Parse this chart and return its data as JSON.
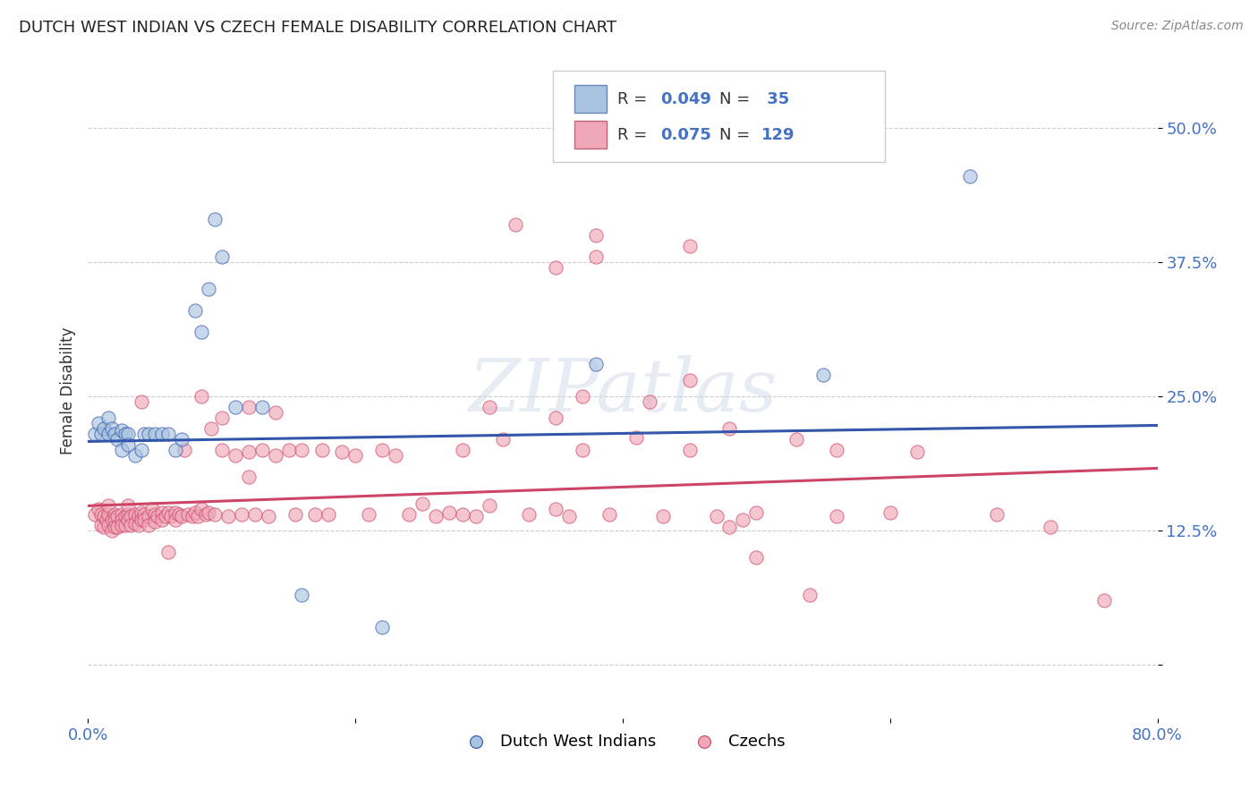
{
  "title": "DUTCH WEST INDIAN VS CZECH FEMALE DISABILITY CORRELATION CHART",
  "source": "Source: ZipAtlas.com",
  "ylabel": "Female Disability",
  "yticks": [
    0.0,
    0.125,
    0.25,
    0.375,
    0.5
  ],
  "ytick_labels": [
    "",
    "12.5%",
    "25.0%",
    "37.5%",
    "50.0%"
  ],
  "xlim": [
    0.0,
    0.8
  ],
  "ylim": [
    -0.05,
    0.56
  ],
  "color_blue": "#a8c4e0",
  "color_pink": "#f0a8b8",
  "color_blue_line": "#3355aa",
  "color_pink_line": "#cc4466",
  "color_blue_text": "#4472c4",
  "background_color": "#ffffff",
  "grid_color": "#cccccc",
  "watermark": "ZIPatlas",
  "legend_label_blue": "Dutch West Indians",
  "legend_label_pink": "Czechs",
  "blue_line_y_start": 0.208,
  "blue_line_y_end": 0.223,
  "pink_line_y_start": 0.148,
  "pink_line_y_end": 0.183,
  "blue_scatter_x": [
    0.005,
    0.008,
    0.01,
    0.012,
    0.015,
    0.015,
    0.018,
    0.02,
    0.022,
    0.025,
    0.025,
    0.028,
    0.03,
    0.03,
    0.035,
    0.04,
    0.042,
    0.045,
    0.05,
    0.055,
    0.06,
    0.065,
    0.07,
    0.08,
    0.085,
    0.09,
    0.095,
    0.1,
    0.11,
    0.13,
    0.16,
    0.22,
    0.38,
    0.55,
    0.66
  ],
  "blue_scatter_y": [
    0.215,
    0.225,
    0.215,
    0.22,
    0.23,
    0.215,
    0.22,
    0.215,
    0.21,
    0.218,
    0.2,
    0.215,
    0.215,
    0.205,
    0.195,
    0.2,
    0.215,
    0.215,
    0.215,
    0.215,
    0.215,
    0.2,
    0.21,
    0.33,
    0.31,
    0.35,
    0.415,
    0.38,
    0.24,
    0.24,
    0.065,
    0.035,
    0.28,
    0.27,
    0.455
  ],
  "pink_scatter_x": [
    0.005,
    0.008,
    0.01,
    0.01,
    0.012,
    0.012,
    0.014,
    0.015,
    0.015,
    0.015,
    0.018,
    0.018,
    0.02,
    0.02,
    0.02,
    0.022,
    0.022,
    0.025,
    0.025,
    0.025,
    0.028,
    0.028,
    0.03,
    0.03,
    0.03,
    0.032,
    0.032,
    0.035,
    0.035,
    0.038,
    0.038,
    0.04,
    0.04,
    0.042,
    0.042,
    0.045,
    0.045,
    0.048,
    0.05,
    0.05,
    0.052,
    0.055,
    0.055,
    0.058,
    0.06,
    0.062,
    0.065,
    0.065,
    0.068,
    0.07,
    0.072,
    0.075,
    0.078,
    0.08,
    0.082,
    0.085,
    0.088,
    0.09,
    0.092,
    0.095,
    0.1,
    0.105,
    0.11,
    0.115,
    0.12,
    0.125,
    0.13,
    0.135,
    0.14,
    0.15,
    0.155,
    0.16,
    0.17,
    0.175,
    0.18,
    0.19,
    0.2,
    0.21,
    0.22,
    0.23,
    0.24,
    0.25,
    0.26,
    0.27,
    0.28,
    0.29,
    0.3,
    0.31,
    0.33,
    0.35,
    0.37,
    0.39,
    0.41,
    0.43,
    0.45,
    0.47,
    0.5,
    0.53,
    0.56,
    0.6,
    0.38,
    0.32,
    0.38,
    0.45,
    0.35,
    0.45,
    0.37,
    0.3,
    0.35,
    0.42,
    0.48,
    0.56,
    0.62,
    0.68,
    0.72,
    0.76,
    0.04,
    0.085,
    0.1,
    0.12,
    0.14,
    0.12,
    0.06,
    0.36,
    0.28,
    0.49,
    0.48,
    0.5,
    0.54
  ],
  "pink_scatter_y": [
    0.14,
    0.145,
    0.14,
    0.13,
    0.138,
    0.128,
    0.135,
    0.14,
    0.13,
    0.148,
    0.135,
    0.125,
    0.14,
    0.135,
    0.128,
    0.138,
    0.128,
    0.14,
    0.135,
    0.13,
    0.138,
    0.13,
    0.14,
    0.135,
    0.148,
    0.138,
    0.13,
    0.14,
    0.132,
    0.138,
    0.13,
    0.142,
    0.135,
    0.14,
    0.135,
    0.138,
    0.13,
    0.145,
    0.14,
    0.133,
    0.138,
    0.142,
    0.135,
    0.138,
    0.142,
    0.138,
    0.142,
    0.135,
    0.14,
    0.138,
    0.2,
    0.14,
    0.138,
    0.142,
    0.138,
    0.145,
    0.14,
    0.142,
    0.22,
    0.14,
    0.2,
    0.138,
    0.195,
    0.14,
    0.198,
    0.14,
    0.2,
    0.138,
    0.195,
    0.2,
    0.14,
    0.2,
    0.14,
    0.2,
    0.14,
    0.198,
    0.195,
    0.14,
    0.2,
    0.195,
    0.14,
    0.15,
    0.138,
    0.142,
    0.2,
    0.138,
    0.148,
    0.21,
    0.14,
    0.145,
    0.2,
    0.14,
    0.212,
    0.138,
    0.2,
    0.138,
    0.142,
    0.21,
    0.138,
    0.142,
    0.4,
    0.41,
    0.38,
    0.39,
    0.37,
    0.265,
    0.25,
    0.24,
    0.23,
    0.245,
    0.22,
    0.2,
    0.198,
    0.14,
    0.128,
    0.06,
    0.245,
    0.25,
    0.23,
    0.24,
    0.235,
    0.175,
    0.105,
    0.138,
    0.14,
    0.135,
    0.128,
    0.1,
    0.065
  ]
}
